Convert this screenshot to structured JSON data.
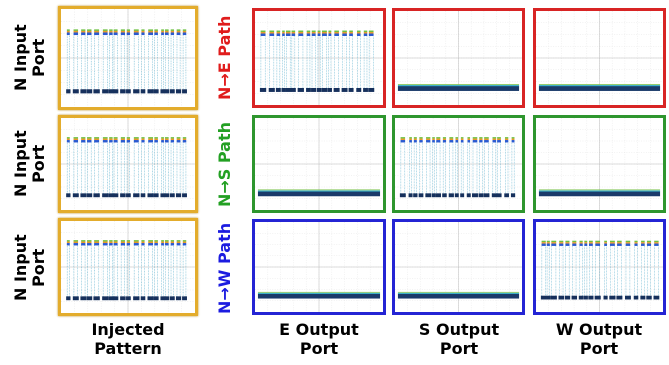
{
  "row_labels": [
    "N Input Port",
    "N Input Port",
    "N Input Port"
  ],
  "paths": [
    "N→E Path",
    "N→S Path",
    "N→W Path"
  ],
  "column_labels": [
    "Injected Pattern",
    "E Output Port",
    "S Output Port",
    "W Output Port"
  ]
}
